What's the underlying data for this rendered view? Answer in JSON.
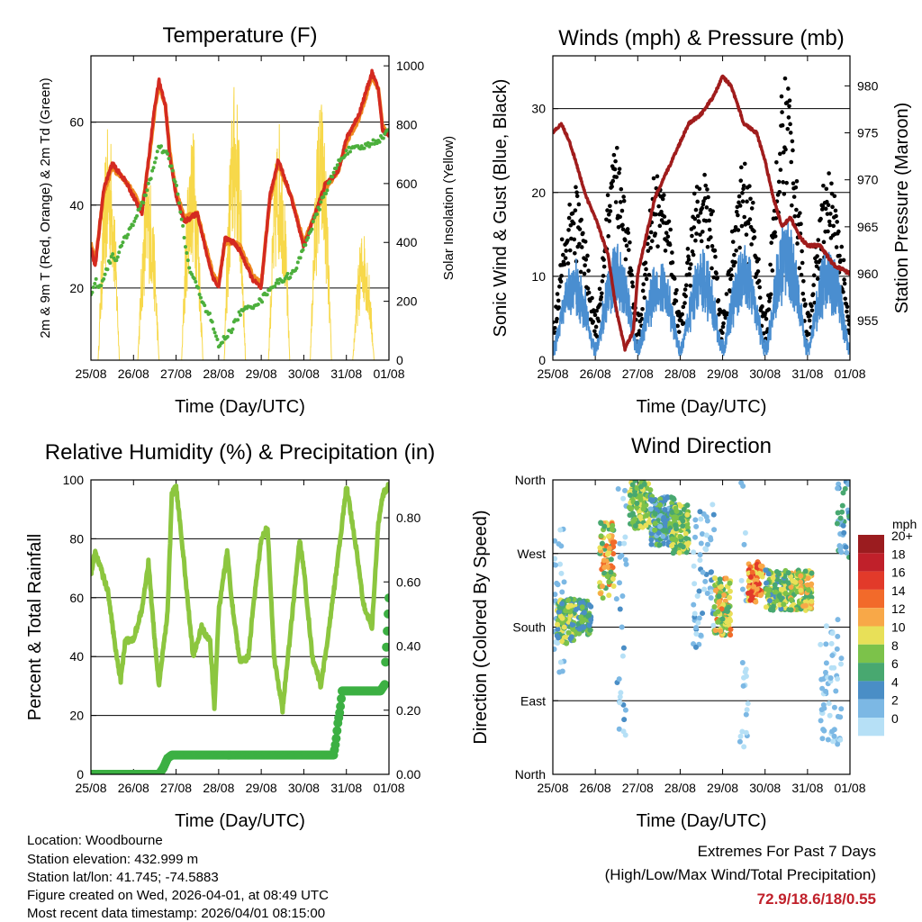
{
  "chart_data": [
    {
      "type": "line",
      "title": "Temperature (F)",
      "xlabel": "Time (Day/UTC)",
      "ylabel": "2m & 9m T (Red, Orange) & 2m Td (Green)",
      "ylabel_right": "Solar Insolation (Yellow)",
      "x_ticks": [
        "25/08",
        "26/08",
        "27/08",
        "28/08",
        "29/08",
        "30/08",
        "31/08",
        "01/08"
      ],
      "xlim": [
        0,
        7
      ],
      "ylim": [
        2.6,
        76
      ],
      "y_ticks": [
        20,
        40,
        60
      ],
      "ylim_right": [
        0,
        1034
      ],
      "y_ticks_right": [
        0,
        200,
        400,
        600,
        800,
        1000
      ],
      "grid_values": [
        20,
        40,
        60
      ],
      "series": [
        {
          "name": "2m T",
          "color": "#d42a20",
          "x": [
            0,
            0.1,
            0.3,
            0.5,
            0.8,
            1.0,
            1.2,
            1.4,
            1.5,
            1.6,
            1.75,
            1.85,
            2.0,
            2.2,
            2.5,
            2.7,
            2.85,
            3.0,
            3.15,
            3.35,
            3.5,
            3.8,
            4.0,
            4.2,
            4.4,
            4.7,
            5.0,
            5.2,
            5.5,
            5.8,
            6.0,
            6.3,
            6.6,
            6.75,
            6.85,
            7.0
          ],
          "y": [
            30,
            25,
            44,
            50,
            46,
            42,
            38,
            55,
            64,
            70,
            64,
            52,
            42,
            36,
            38,
            29,
            23,
            20,
            32,
            31,
            29,
            22,
            20,
            42,
            51,
            42,
            30,
            36,
            45,
            48,
            56,
            62,
            72,
            68,
            58,
            57
          ]
        },
        {
          "name": "9m T",
          "color": "#f08a20",
          "x": [
            0,
            0.1,
            0.3,
            0.5,
            0.8,
            1.0,
            1.2,
            1.4,
            1.5,
            1.6,
            1.75,
            1.85,
            2.0,
            2.2,
            2.5,
            2.7,
            2.85,
            3.0,
            3.15,
            3.35,
            3.5,
            3.8,
            4.0,
            4.2,
            4.4,
            4.7,
            5.0,
            5.2,
            5.5,
            5.8,
            6.0,
            6.3,
            6.6,
            6.75,
            6.85,
            7.0
          ],
          "y": [
            31,
            26,
            43,
            49,
            46,
            43,
            39,
            54,
            63,
            69,
            64,
            53,
            43,
            37,
            38,
            30,
            24,
            21,
            31,
            31,
            30,
            23,
            21,
            41,
            50,
            42,
            31,
            36,
            44,
            48,
            55,
            61,
            71,
            68,
            59,
            57
          ]
        },
        {
          "name": "2m Td",
          "color": "#4caf3c",
          "x": [
            0,
            0.1,
            0.2,
            0.5,
            0.6,
            0.8,
            1.2,
            1.5,
            1.6,
            1.8,
            2.0,
            2.3,
            2.5,
            2.7,
            2.8,
            3.0,
            3.3,
            3.5,
            4.0,
            4.2,
            4.5,
            4.8,
            5.0,
            5.2,
            5.5,
            5.8,
            6.0,
            6.4,
            6.8,
            7.0
          ],
          "y": [
            18,
            22,
            20,
            28,
            27,
            32,
            40,
            50,
            54,
            52,
            45,
            25,
            20,
            15,
            13,
            6,
            10,
            14,
            17,
            20,
            22,
            24,
            30,
            35,
            43,
            50,
            53,
            54,
            56,
            58
          ]
        },
        {
          "name": "Solar Insolation",
          "color": "#f7d84a",
          "axis": "right",
          "peaks_x": [
            0.42,
            1.35,
            2.38,
            3.38,
            4.42,
            5.4,
            6.4
          ],
          "peaks_y": [
            800,
            650,
            800,
            950,
            820,
            900,
            450
          ]
        }
      ]
    },
    {
      "type": "line",
      "title": "Winds (mph) & Pressure (mb)",
      "xlabel": "Time (Day/UTC)",
      "ylabel": "Sonic Wind & Gust (Blue, Black)",
      "ylabel_right": "Station Pressure (Maroon)",
      "x_ticks": [
        "25/08",
        "26/08",
        "27/08",
        "28/08",
        "29/08",
        "30/08",
        "31/08",
        "01/08"
      ],
      "xlim": [
        0,
        7
      ],
      "ylim": [
        0,
        36.3
      ],
      "y_ticks": [
        0,
        10,
        20,
        30
      ],
      "ylim_right": [
        950.8,
        983.2
      ],
      "y_ticks_right": [
        955,
        960,
        965,
        970,
        975,
        980
      ],
      "grid_values": [
        10,
        20,
        30
      ],
      "wind_daily_peak_mph": [
        10,
        12,
        10,
        11,
        12,
        15,
        12
      ],
      "gust_daily_peak_mph": [
        20,
        25,
        22,
        24,
        22,
        33,
        22
      ],
      "series": [
        {
          "name": "Station Pressure",
          "color": "#a01c1c",
          "axis": "right",
          "x": [
            0,
            0.2,
            0.4,
            0.8,
            1.0,
            1.3,
            1.5,
            1.7,
            1.9,
            2.0,
            2.2,
            2.4,
            2.8,
            3.2,
            3.5,
            3.8,
            4.0,
            4.2,
            4.5,
            4.8,
            5.0,
            5.2,
            5.4,
            5.6,
            5.8,
            6.0,
            6.3,
            6.6,
            7.0
          ],
          "y": [
            975,
            976,
            974,
            968,
            966,
            962,
            956,
            952,
            954,
            960,
            964,
            968,
            972,
            976,
            977,
            979,
            981,
            980,
            976,
            975,
            972,
            968,
            965,
            966,
            964,
            963,
            963,
            961,
            960
          ]
        }
      ]
    },
    {
      "type": "line",
      "title": "Relative Humidity (%) & Precipitation (in)",
      "xlabel": "Time (Day/UTC)",
      "ylabel": "Percent & Total Rainfall",
      "x_ticks": [
        "25/08",
        "26/08",
        "27/08",
        "28/08",
        "29/08",
        "30/08",
        "31/08",
        "01/08"
      ],
      "xlim": [
        0,
        7
      ],
      "ylim": [
        0,
        100
      ],
      "y_ticks": [
        0,
        20,
        40,
        60,
        80,
        100
      ],
      "ylim_right": [
        0,
        0.918
      ],
      "y_ticks_right": [
        "0.00",
        "0.20",
        "0.40",
        "0.60",
        "0.80"
      ],
      "grid_values": [
        20,
        40,
        60,
        80
      ],
      "series": [
        {
          "name": "Relative Humidity",
          "color": "#8cc63f",
          "x": [
            0,
            0.1,
            0.4,
            0.6,
            0.7,
            0.8,
            1.0,
            1.2,
            1.35,
            1.5,
            1.6,
            1.8,
            1.9,
            2.0,
            2.2,
            2.4,
            2.6,
            2.8,
            2.9,
            3.0,
            3.2,
            3.3,
            3.5,
            3.7,
            3.8,
            4.0,
            4.15,
            4.3,
            4.5,
            4.7,
            4.9,
            5.0,
            5.2,
            5.4,
            5.6,
            5.9,
            6.0,
            6.2,
            6.4,
            6.6,
            6.75,
            6.85,
            7.0
          ],
          "y": [
            68,
            76,
            62,
            40,
            32,
            45,
            46,
            56,
            72,
            45,
            30,
            55,
            95,
            98,
            70,
            40,
            50,
            45,
            23,
            55,
            76,
            60,
            38,
            40,
            55,
            80,
            84,
            40,
            22,
            50,
            80,
            70,
            40,
            30,
            50,
            85,
            98,
            80,
            58,
            50,
            85,
            95,
            98
          ]
        },
        {
          "name": "Total Precipitation",
          "color": "#3cb043",
          "axis": "right",
          "x": [
            0,
            1.6,
            1.7,
            1.8,
            1.9,
            5.7,
            5.75,
            5.8,
            5.85,
            5.9,
            6.8,
            6.9,
            6.92,
            6.95,
            6.98,
            7.0
          ],
          "y": [
            0,
            0,
            0.02,
            0.05,
            0.06,
            0.06,
            0.1,
            0.16,
            0.2,
            0.26,
            0.26,
            0.28,
            0.35,
            0.42,
            0.5,
            0.55
          ]
        }
      ]
    },
    {
      "type": "scatter",
      "title": "Wind Direction",
      "xlabel": "Time (Day/UTC)",
      "ylabel": "Direction (Colored By Speed)",
      "x_ticks": [
        "25/08",
        "26/08",
        "27/08",
        "28/08",
        "29/08",
        "30/08",
        "31/08",
        "01/08"
      ],
      "xlim": [
        0,
        7
      ],
      "ylim": [
        0,
        360
      ],
      "y_ticks": [
        "North",
        "East",
        "South",
        "West",
        "North"
      ],
      "grid_values": [
        90,
        180,
        270
      ],
      "legend": {
        "title": "mph",
        "placement": "right",
        "labels": [
          "20+",
          "18",
          "16",
          "14",
          "12",
          "10",
          "8",
          "6",
          "4",
          "2",
          "0"
        ],
        "colors": [
          "#9b1c1f",
          "#c0202a",
          "#e23a2a",
          "#f26a2a",
          "#f8a848",
          "#e8e058",
          "#7cc24a",
          "#48a870",
          "#4a8ec6",
          "#7cb8e4",
          "#b6e0f6"
        ]
      },
      "clusters": [
        {
          "t": [
            0,
            0.3
          ],
          "dir": [
            120,
            300
          ],
          "speed": [
            1,
            4
          ]
        },
        {
          "t": [
            0.1,
            0.55
          ],
          "dir": [
            160,
            215
          ],
          "speed": [
            4,
            12
          ]
        },
        {
          "t": [
            0.6,
            0.9
          ],
          "dir": [
            170,
            215
          ],
          "speed": [
            4,
            9
          ]
        },
        {
          "t": [
            1.1,
            1.45
          ],
          "dir": [
            215,
            310
          ],
          "speed": [
            6,
            16
          ]
        },
        {
          "t": [
            1.5,
            1.75
          ],
          "dir": [
            0,
            360
          ],
          "speed": [
            1,
            5
          ]
        },
        {
          "t": [
            1.8,
            2.3
          ],
          "dir": [
            300,
            360
          ],
          "speed": [
            6,
            12
          ]
        },
        {
          "t": [
            2.3,
            2.9
          ],
          "dir": [
            280,
            340
          ],
          "speed": [
            3,
            9
          ]
        },
        {
          "t": [
            2.8,
            3.2
          ],
          "dir": [
            270,
            330
          ],
          "speed": [
            6,
            12
          ]
        },
        {
          "t": [
            3.3,
            3.8
          ],
          "dir": [
            150,
            330
          ],
          "speed": [
            1,
            5
          ]
        },
        {
          "t": [
            3.8,
            4.2
          ],
          "dir": [
            170,
            240
          ],
          "speed": [
            6,
            15
          ]
        },
        {
          "t": [
            4.4,
            4.6
          ],
          "dir": [
            0,
            360
          ],
          "speed": [
            0,
            3
          ]
        },
        {
          "t": [
            4.6,
            4.95
          ],
          "dir": [
            210,
            260
          ],
          "speed": [
            10,
            18
          ]
        },
        {
          "t": [
            5.0,
            5.5
          ],
          "dir": [
            200,
            250
          ],
          "speed": [
            5,
            12
          ]
        },
        {
          "t": [
            5.55,
            6.1
          ],
          "dir": [
            200,
            250
          ],
          "speed": [
            6,
            14
          ]
        },
        {
          "t": [
            6.3,
            6.8
          ],
          "dir": [
            30,
            190
          ],
          "speed": [
            0,
            4
          ]
        },
        {
          "t": [
            6.7,
            7.0
          ],
          "dir": [
            260,
            360
          ],
          "speed": [
            2,
            8
          ]
        }
      ]
    }
  ],
  "info": {
    "location": "Location: Woodbourne",
    "elevation": "Station elevation: 432.999 m",
    "latlon": "Station lat/lon: 41.745; -74.5883",
    "created": "Figure created on Wed, 2026-04-01, at 08:49 UTC",
    "recent": "Most recent data timestamp: 2026/04/01 08:15:00"
  },
  "extremes": {
    "title": "Extremes For Past 7 Days",
    "subtitle": "(High/Low/Max Wind/Total Precipitation)",
    "values": "72.9/18.6/18/0.55",
    "value_color": "#c0202a"
  }
}
